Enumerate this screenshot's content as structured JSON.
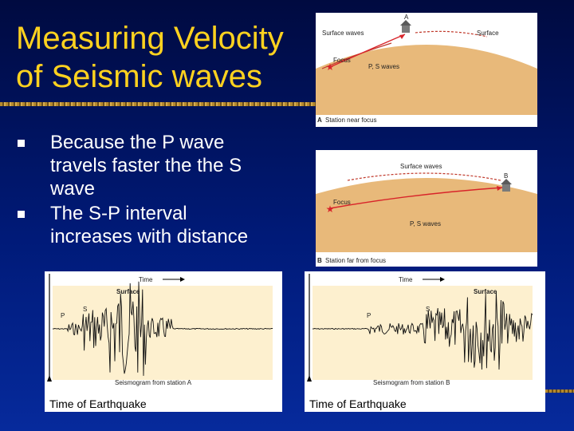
{
  "slide": {
    "title_line1": "Measuring Velocity",
    "title_line2": "of Seismic waves"
  },
  "bullets": [
    {
      "line1": "Because the P wave",
      "line2": "travels faster the the S",
      "line3": "wave"
    },
    {
      "line1": "The S-P interval",
      "line2": "increases with distance"
    }
  ],
  "diagram_a": {
    "surface_waves": "Surface waves",
    "surface": "Surface",
    "focus": "Focus",
    "ps_waves": "P, S waves",
    "station_letter": "A",
    "caption_letter": "A",
    "caption": "Station near focus"
  },
  "diagram_b": {
    "surface_waves": "Surface waves",
    "focus": "Focus",
    "ps_waves": "P, S waves",
    "station_letter": "B",
    "caption_letter": "B",
    "caption": "Station far from focus"
  },
  "seismogram_a": {
    "time": "Time",
    "surface": "Surface",
    "p": "P",
    "s": "S",
    "caption": "Seismogram from station A",
    "footer": "Time of Earthquake"
  },
  "seismogram_b": {
    "time": "Time",
    "surface": "Surface",
    "p": "P",
    "s": "S",
    "caption": "Seismogram from station B",
    "footer": "Time of Earthquake"
  },
  "colors": {
    "title": "#ffd21f",
    "earth": "#e8b97a",
    "sky": "#ffffff",
    "wave": "#d8242a",
    "paper": "#fdf0cf"
  }
}
